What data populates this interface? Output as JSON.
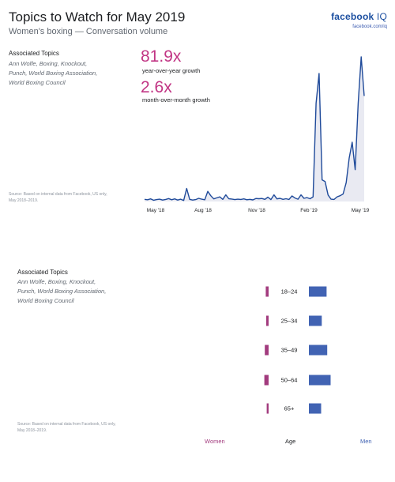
{
  "header": {
    "title": "Topics to Watch for May 2019",
    "subtitle": "Women's boxing — Conversation volume",
    "brand_name": "facebook",
    "brand_suffix": "IQ",
    "brand_url": "facebook.com/iq"
  },
  "top_panel": {
    "associated_label": "Associated Topics",
    "topics_lines": [
      "Ann Wolfe, Boxing, Knockout,",
      "Punch, World Boxing Association,",
      "World Boxing Council"
    ],
    "source_lines": [
      "Source: Based on internal data from Facebook, US only,",
      "May 2018–2019."
    ],
    "stats": [
      {
        "value": "81.9x",
        "label": "year-over-year growth"
      },
      {
        "value": "2.6x",
        "label": "month-over-month growth"
      }
    ]
  },
  "bottom_panel": {
    "associated_label": "Associated Topics",
    "topics_lines": [
      "Ann Wolfe, Boxing, Knockout,",
      "Punch, World Boxing Association,",
      "World Boxing Council"
    ],
    "source_lines": [
      "Source: Based on internal data from Facebook, US only,",
      "May 2018–2019."
    ],
    "footer": {
      "women": "Women",
      "age": "Age",
      "men": "Men"
    }
  },
  "colors": {
    "line": "#1f4a9a",
    "fill": "#e9eaf2",
    "women": "#a23b7e",
    "men": "#4163b3",
    "accent": "#c13584"
  },
  "chart_data": [
    {
      "type": "area",
      "title": "",
      "xlabel": "",
      "ylabel": "",
      "grid": false,
      "x_ticks": [
        "May '18",
        "Aug '18",
        "Nov '18",
        "Feb '19",
        "May '19"
      ],
      "ylim": [
        0,
        100
      ],
      "series": [
        {
          "values": [
            1.5,
            1.2,
            1.8,
            0.9,
            1.3,
            1.6,
            1.0,
            1.4,
            2.0,
            1.2,
            1.8,
            1.0,
            1.6,
            0.7,
            9.0,
            1.5,
            1.0,
            1.3,
            2.2,
            1.6,
            1.2,
            7.0,
            4.0,
            1.8,
            2.5,
            3.2,
            1.5,
            4.6,
            1.9,
            1.7,
            1.3,
            1.6,
            1.4,
            1.8,
            1.2,
            1.5,
            1.1,
            2.1,
            1.9,
            2.1,
            1.5,
            3.0,
            1.3,
            4.6,
            1.8,
            2.2,
            1.5,
            1.9,
            1.4,
            3.8,
            2.4,
            1.6,
            4.6,
            2.2,
            2.7,
            1.9,
            3.2,
            68.0,
            88.5,
            15.0,
            13.8,
            4.5,
            1.6,
            1.4,
            3.2,
            4.0,
            5.2,
            13.0,
            30.0,
            41.0,
            22.0,
            68.0,
            100.0,
            73.0
          ]
        }
      ]
    },
    {
      "type": "bar",
      "title": "",
      "grid": false,
      "categories": [
        "18–24",
        "25–34",
        "35–49",
        "50–64",
        "65+"
      ],
      "series": [
        {
          "name": "Women",
          "values": [
            6,
            5,
            8,
            9,
            4
          ]
        },
        {
          "name": "Men",
          "values": [
            26,
            19,
            27,
            32,
            18
          ]
        }
      ]
    }
  ]
}
